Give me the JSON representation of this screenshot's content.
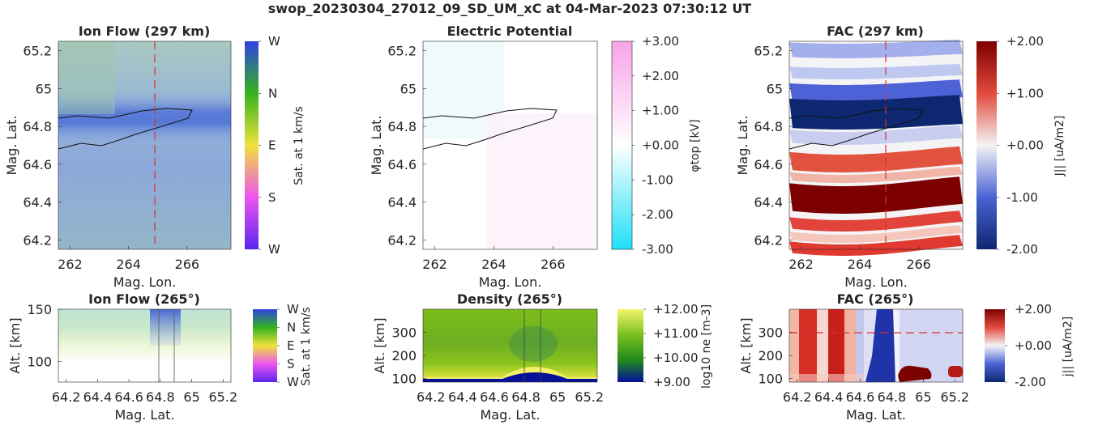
{
  "title": "swop_20230304_27012_09_SD_UM_xC at 04-Mar-2023 07:30:12 UT",
  "colors": {
    "ion_flow_cycle": [
      "#5a25f0",
      "#ee55f0",
      "#f0e23a",
      "#34b41f",
      "#3042e0"
    ],
    "potential_neg": "#1ee0f8",
    "potential_pos": "#f8a3e8",
    "fac_neg": "#0d2870",
    "fac_mid": "#f4f4f6",
    "fac_pos": "#7d0000",
    "density": [
      "#05109b",
      "#1f8a1a",
      "#7cc01e",
      "#f5f56a"
    ],
    "dashed_line": "#d9302c"
  },
  "chart_data": [
    {
      "type": "heatmap",
      "title": "Ion Flow (297 km)",
      "xlabel": "Mag. Lon.",
      "ylabel": "Mag. Lat.",
      "xlim": [
        261.6,
        267.5
      ],
      "ylim": [
        64.15,
        65.25
      ],
      "xticks": [
        "262",
        "264",
        "266"
      ],
      "xtick_values": [
        262,
        264,
        266
      ],
      "yticks": [
        "64.2",
        "64.4",
        "64.6",
        "64.8",
        "65",
        "65.2"
      ],
      "ytick_values": [
        64.2,
        64.4,
        64.6,
        64.8,
        65,
        65.2
      ],
      "colorbar": {
        "label": "Sat. at 1 km/s",
        "ticks": [
          "W",
          "N",
          "E",
          "S",
          "W"
        ]
      },
      "dashed_lon": 265,
      "band_lat": 64.82
    },
    {
      "type": "heatmap",
      "title": "Electric Potential",
      "xlabel": "Mag. Lon.",
      "ylabel": "Mag. Lat.",
      "xlim": [
        261.6,
        267.5
      ],
      "ylim": [
        64.15,
        65.25
      ],
      "xticks": [
        "262",
        "264",
        "266"
      ],
      "xtick_values": [
        262,
        264,
        266
      ],
      "yticks": [
        "64.2",
        "64.4",
        "64.6",
        "64.8",
        "65",
        "65.2"
      ],
      "ytick_values": [
        64.2,
        64.4,
        64.6,
        64.8,
        65,
        65.2
      ],
      "colorbar": {
        "label": "φtop [kV]",
        "ticks": [
          "+3.00",
          "+2.00",
          "+1.00",
          "+0.00",
          "-1.00",
          "-2.00",
          "-3.00"
        ],
        "range": [
          -3,
          3
        ]
      }
    },
    {
      "type": "heatmap",
      "title": "FAC (297 km)",
      "xlabel": "Mag. Lon.",
      "ylabel": "Mag. Lat.",
      "xlim": [
        261.6,
        267.5
      ],
      "ylim": [
        64.15,
        65.25
      ],
      "xticks": [
        "262",
        "264",
        "266"
      ],
      "xtick_values": [
        262,
        264,
        266
      ],
      "yticks": [
        "64.2",
        "64.4",
        "64.6",
        "64.8",
        "65",
        "65.2"
      ],
      "ytick_values": [
        64.2,
        64.4,
        64.6,
        64.8,
        65,
        65.2
      ],
      "colorbar": {
        "label": "J|| [uA/m2]",
        "ticks": [
          "+2.00",
          "+1.00",
          "+0.00",
          "-1.00",
          "-2.00"
        ],
        "range": [
          -2,
          2
        ]
      },
      "dashed_lon": 265
    },
    {
      "type": "heatmap",
      "title": "Ion Flow (265°)",
      "xlabel": "Mag. Lat.",
      "ylabel": "Alt. [km]",
      "xlim": [
        64.15,
        65.25
      ],
      "ylim": [
        80,
        150
      ],
      "xticks": [
        "64.2",
        "64.4",
        "64.6",
        "64.8",
        "65",
        "65.2"
      ],
      "xtick_values": [
        64.2,
        64.4,
        64.6,
        64.8,
        65,
        65.2
      ],
      "yticks": [
        "100",
        "150"
      ],
      "ytick_values": [
        100,
        150
      ],
      "colorbar": {
        "label": "Sat. at 1 km/s",
        "ticks": [
          "W",
          "N",
          "E",
          "S",
          "W"
        ]
      },
      "vlines": [
        64.77,
        64.87
      ]
    },
    {
      "type": "heatmap",
      "title": "Density (265°)",
      "xlabel": "Mag. Lat.",
      "ylabel": "Alt. [km]",
      "xlim": [
        64.15,
        65.25
      ],
      "ylim": [
        85,
        400
      ],
      "xticks": [
        "64.2",
        "64.4",
        "64.6",
        "64.8",
        "65",
        "65.2"
      ],
      "xtick_values": [
        64.2,
        64.4,
        64.6,
        64.8,
        65,
        65.2
      ],
      "yticks": [
        "100",
        "200",
        "300"
      ],
      "ytick_values": [
        100,
        200,
        300
      ],
      "colorbar": {
        "label": "log10 ne [m-3]",
        "ticks": [
          "+12.00",
          "+11.00",
          "+10.00",
          "+9.00"
        ],
        "range": [
          9,
          12
        ]
      },
      "vlines": [
        64.77,
        64.87
      ]
    },
    {
      "type": "heatmap",
      "title": "FAC (265°)",
      "xlabel": "Mag. Lat.",
      "ylabel": "Alt. [km]",
      "xlim": [
        64.15,
        65.25
      ],
      "ylim": [
        85,
        400
      ],
      "xticks": [
        "64.2",
        "64.4",
        "64.6",
        "64.8",
        "65",
        "65.2"
      ],
      "xtick_values": [
        64.2,
        64.4,
        64.6,
        64.8,
        65,
        65.2
      ],
      "yticks": [
        "100",
        "200",
        "300"
      ],
      "ytick_values": [
        100,
        200,
        300
      ],
      "colorbar": {
        "label": "j|| [uA/m2]",
        "ticks": [
          "+2.00",
          "+0.00",
          "-2.00"
        ],
        "range": [
          -2,
          2
        ]
      },
      "dashed_alt": 297
    }
  ]
}
